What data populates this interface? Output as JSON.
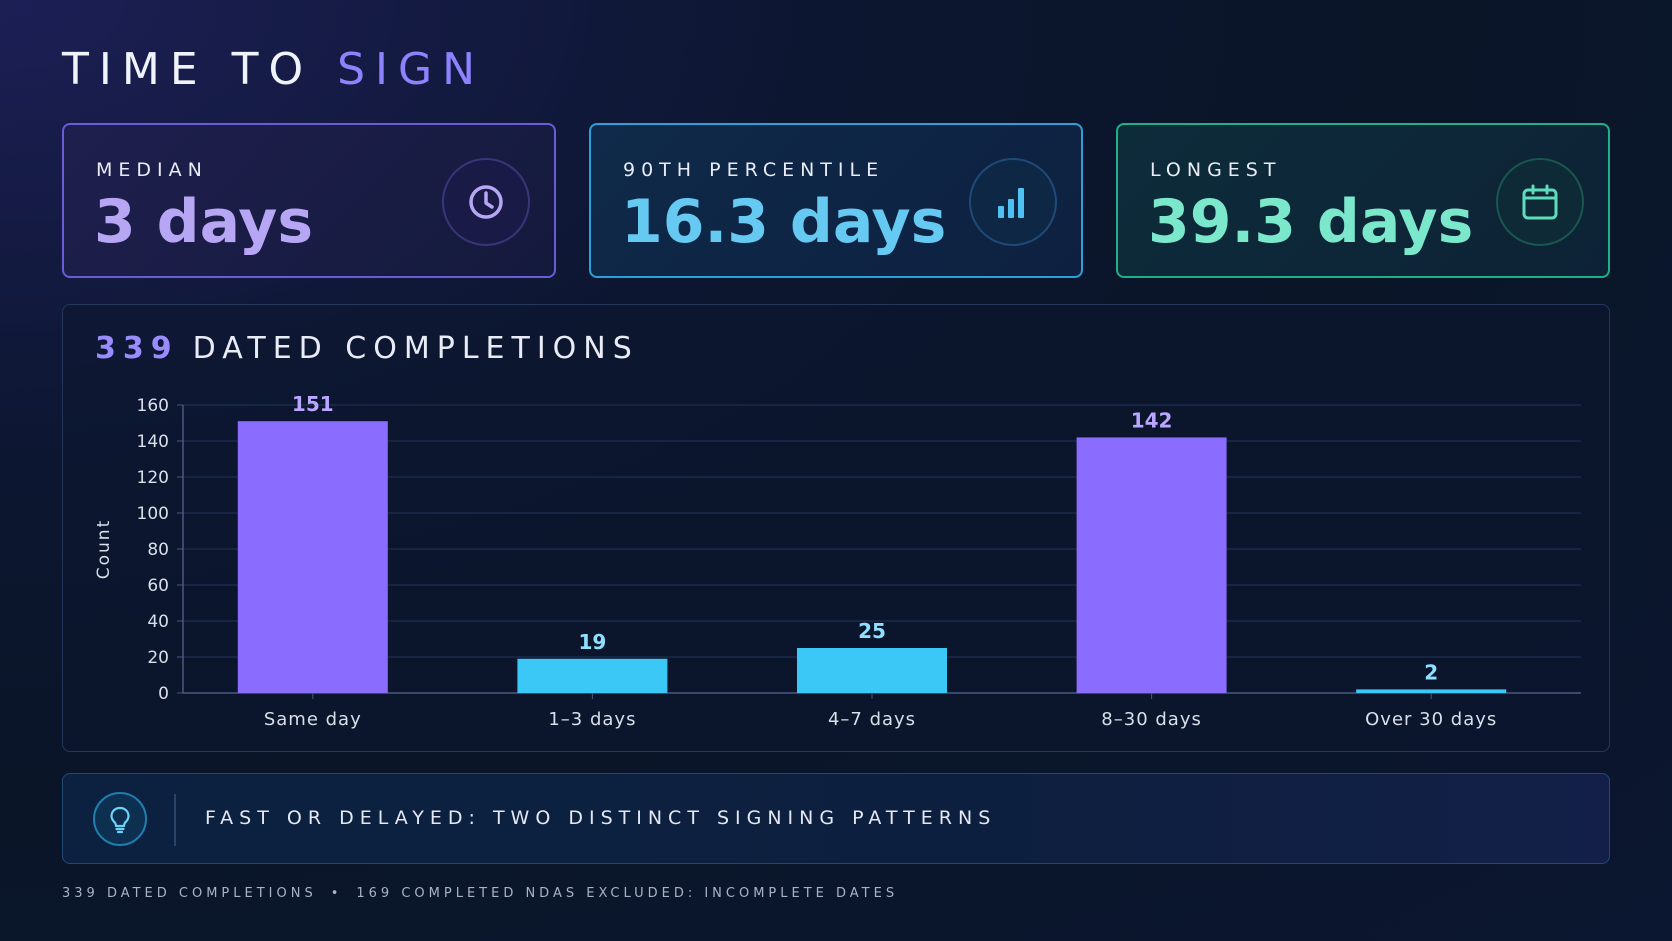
{
  "title": {
    "main": "TIME TO",
    "accent": "SIGN"
  },
  "stats": [
    {
      "label": "MEDIAN",
      "value": "3 days",
      "icon": "clock-icon",
      "color": "#b6a6f4"
    },
    {
      "label": "90TH PERCENTILE",
      "value": "16.3 days",
      "icon": "bar-chart-icon",
      "color": "#66c9f2"
    },
    {
      "label": "LONGEST",
      "value": "39.3 days",
      "icon": "calendar-icon",
      "color": "#7be7cb"
    }
  ],
  "chart_header": {
    "count": "339",
    "label": "DATED COMPLETIONS"
  },
  "chart_data": {
    "type": "bar",
    "categories": [
      "Same day",
      "1–3 days",
      "4–7 days",
      "8–30 days",
      "Over 30 days"
    ],
    "values": [
      151,
      19,
      25,
      142,
      2
    ],
    "bar_colors": [
      "#8a6cff",
      "#3cc8f7",
      "#3cc8f7",
      "#8a6cff",
      "#3cc8f7"
    ],
    "label_colors": [
      "#b9a6ff",
      "#8fe0ff",
      "#8fe0ff",
      "#b9a6ff",
      "#8fe0ff"
    ],
    "ylabel": "Count",
    "ylim": [
      0,
      160
    ],
    "yticks": [
      0,
      20,
      40,
      60,
      80,
      100,
      120,
      140,
      160
    ],
    "grid": true
  },
  "insight": {
    "text": "FAST OR DELAYED: TWO DISTINCT SIGNING PATTERNS",
    "icon": "lightbulb-icon"
  },
  "footnote": {
    "left": "339 DATED COMPLETIONS",
    "separator": "•",
    "right": "169 COMPLETED NDAS EXCLUDED: INCOMPLETE DATES"
  }
}
